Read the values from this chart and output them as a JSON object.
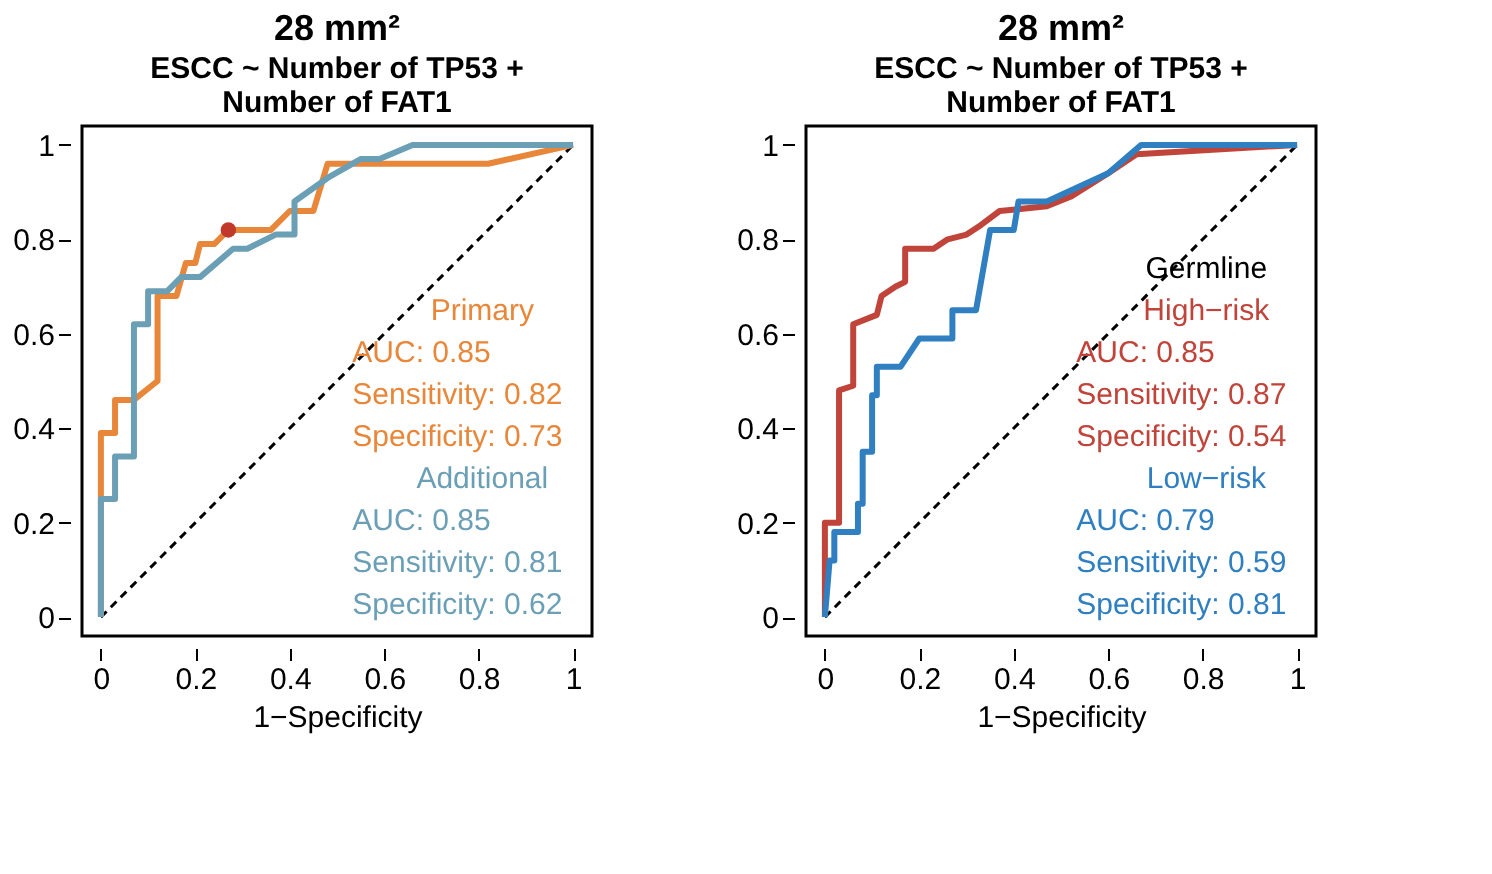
{
  "chart_data": [
    {
      "type": "line",
      "title": "28 mm²",
      "subtitle": "ESCC ~ Number of TP53 + Number of FAT1",
      "xlabel": "1−Specificity",
      "xlim": [
        -0.04,
        1.04
      ],
      "ylim": [
        -0.04,
        1.04
      ],
      "xticks": [
        0,
        0.2,
        0.4,
        0.6,
        0.8,
        1
      ],
      "yticks": [
        0,
        0.2,
        0.4,
        0.6,
        0.8,
        1
      ],
      "grid": false,
      "legend": "bottom right",
      "line_style": "solid",
      "marker": "none",
      "annotations": [
        "AUC: 0.85",
        "Sensitivity: 0.82",
        "Specificity: 0.73",
        "AUC: 0.85",
        "Sensitivity: 0.81",
        "Specificity: 0.62"
      ],
      "series": [
        {
          "type": "line",
          "line_style": "dashed",
          "color": "#000000",
          "x": [
            0,
            1
          ],
          "values": [
            0,
            1
          ]
        },
        {
          "name": "Primary",
          "color": "#e8873a",
          "x": [
            0,
            0,
            0,
            0.03,
            0.03,
            0.07,
            0.12,
            0.12,
            0.16,
            0.18,
            0.2,
            0.21,
            0.24,
            0.27,
            0.36,
            0.4,
            0.45,
            0.48,
            0.82,
            1
          ],
          "values": [
            0,
            0.25,
            0.39,
            0.39,
            0.46,
            0.46,
            0.5,
            0.68,
            0.68,
            0.75,
            0.75,
            0.79,
            0.79,
            0.82,
            0.82,
            0.86,
            0.86,
            0.96,
            0.96,
            1
          ]
        },
        {
          "name": "Additional",
          "color": "#6b9fb5",
          "x": [
            0,
            0,
            0.03,
            0.03,
            0.07,
            0.07,
            0.1,
            0.1,
            0.14,
            0.17,
            0.21,
            0.28,
            0.31,
            0.37,
            0.41,
            0.41,
            0.48,
            0.55,
            0.59,
            0.66,
            1
          ],
          "values": [
            0,
            0.25,
            0.25,
            0.34,
            0.34,
            0.62,
            0.62,
            0.69,
            0.69,
            0.72,
            0.72,
            0.78,
            0.78,
            0.81,
            0.81,
            0.88,
            0.93,
            0.97,
            0.97,
            1,
            1
          ]
        },
        {
          "type": "scatter",
          "marker": "circle",
          "color": "#c0392b",
          "x": [
            0.27
          ],
          "values": [
            0.82
          ]
        }
      ]
    },
    {
      "type": "line",
      "title": "28 mm²",
      "subtitle": "ESCC ~ Number of TP53 + Number of FAT1",
      "xlabel": "1−Specificity",
      "legend_title": "Germline",
      "xlim": [
        -0.04,
        1.04
      ],
      "ylim": [
        -0.04,
        1.04
      ],
      "xticks": [
        0,
        0.2,
        0.4,
        0.6,
        0.8,
        1
      ],
      "yticks": [
        0,
        0.2,
        0.4,
        0.6,
        0.8,
        1
      ],
      "grid": false,
      "legend": "bottom right",
      "line_style": "solid",
      "marker": "none",
      "annotations": [
        "AUC: 0.85",
        "Sensitivity: 0.87",
        "Specificity: 0.54",
        "AUC: 0.79",
        "Sensitivity: 0.59",
        "Specificity: 0.81"
      ],
      "series": [
        {
          "type": "line",
          "line_style": "dashed",
          "color": "#000000",
          "x": [
            0,
            1
          ],
          "values": [
            0,
            1
          ]
        },
        {
          "name": "High−risk",
          "color": "#c0443a",
          "x": [
            0,
            0,
            0.03,
            0.03,
            0.06,
            0.06,
            0.11,
            0.12,
            0.15,
            0.17,
            0.17,
            0.23,
            0.26,
            0.3,
            0.33,
            0.37,
            0.47,
            0.52,
            0.6,
            0.66,
            1
          ],
          "values": [
            0,
            0.2,
            0.2,
            0.48,
            0.49,
            0.62,
            0.64,
            0.68,
            0.7,
            0.71,
            0.78,
            0.78,
            0.8,
            0.81,
            0.83,
            0.86,
            0.87,
            0.89,
            0.94,
            0.98,
            1
          ]
        },
        {
          "name": "Low−risk",
          "color": "#2f7fc1",
          "x": [
            0,
            0.01,
            0.02,
            0.02,
            0.07,
            0.07,
            0.08,
            0.08,
            0.1,
            0.1,
            0.11,
            0.11,
            0.16,
            0.2,
            0.27,
            0.27,
            0.32,
            0.35,
            0.4,
            0.41,
            0.47,
            0.6,
            0.67,
            1
          ],
          "values": [
            0,
            0.12,
            0.12,
            0.18,
            0.18,
            0.24,
            0.24,
            0.35,
            0.35,
            0.47,
            0.47,
            0.53,
            0.53,
            0.59,
            0.59,
            0.65,
            0.65,
            0.82,
            0.82,
            0.88,
            0.88,
            0.94,
            1,
            1
          ]
        }
      ]
    }
  ]
}
